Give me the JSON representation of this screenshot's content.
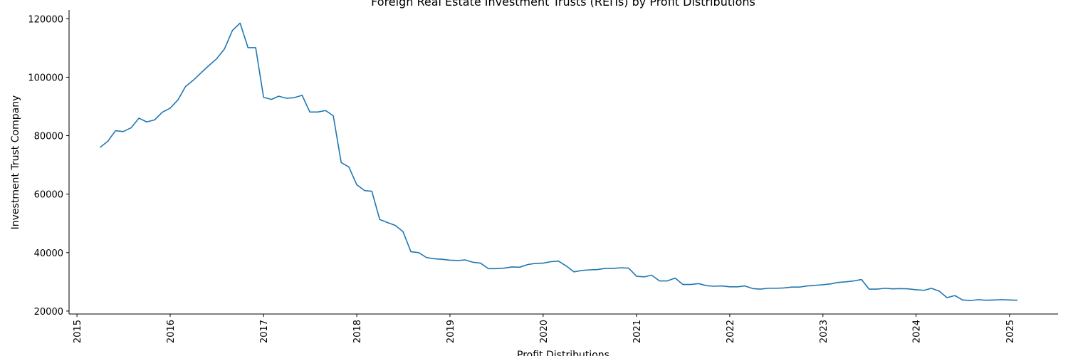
{
  "chart_data": {
    "type": "line",
    "title": "Foreign Real Estate Investment Trusts (REITs) by Profit Distributions",
    "xlabel": "Profit Distributions",
    "ylabel": "Investment Trust Company",
    "xlim": [
      "2014-12-01",
      "2025-07-10"
    ],
    "ylim": [
      19000,
      123000
    ],
    "x_ticks": [
      "2015",
      "2016",
      "2017",
      "2018",
      "2019",
      "2020",
      "2021",
      "2022",
      "2023",
      "2024",
      "2025"
    ],
    "y_ticks": [
      20000,
      40000,
      60000,
      80000,
      100000,
      120000
    ],
    "grid": false,
    "legend": "none",
    "color": "#1f77b4",
    "series": [
      {
        "x": [
          "2015-04",
          "2015-05",
          "2015-06",
          "2015-07",
          "2015-08",
          "2015-09",
          "2015-10",
          "2015-11",
          "2015-12",
          "2016-01",
          "2016-02",
          "2016-03",
          "2016-04",
          "2016-05",
          "2016-06",
          "2016-07",
          "2016-08",
          "2016-09",
          "2016-10",
          "2016-11",
          "2016-12",
          "2017-01",
          "2017-02",
          "2017-03",
          "2017-04",
          "2017-05",
          "2017-06",
          "2017-07",
          "2017-08",
          "2017-09",
          "2017-10",
          "2017-11",
          "2017-12",
          "2018-01",
          "2018-02",
          "2018-03",
          "2018-04",
          "2018-05",
          "2018-06",
          "2018-07",
          "2018-08",
          "2018-09",
          "2018-10",
          "2018-11",
          "2018-12",
          "2019-01",
          "2019-02",
          "2019-03",
          "2019-04",
          "2019-05",
          "2019-06",
          "2019-07",
          "2019-08",
          "2019-09",
          "2019-10",
          "2019-11",
          "2019-12",
          "2020-01",
          "2020-02",
          "2020-03",
          "2020-04",
          "2020-05",
          "2020-06",
          "2020-07",
          "2020-08",
          "2020-09",
          "2020-10",
          "2020-11",
          "2020-12",
          "2021-01",
          "2021-02",
          "2021-03",
          "2021-04",
          "2021-05",
          "2021-06",
          "2021-07",
          "2021-08",
          "2021-09",
          "2021-10",
          "2021-11",
          "2021-12",
          "2022-01",
          "2022-02",
          "2022-03",
          "2022-04",
          "2022-05",
          "2022-06",
          "2022-07",
          "2022-08",
          "2022-09",
          "2022-10",
          "2022-11",
          "2022-12",
          "2023-01",
          "2023-02",
          "2023-03",
          "2023-04",
          "2023-05",
          "2023-06",
          "2023-07",
          "2023-08",
          "2023-09",
          "2023-10",
          "2023-11",
          "2023-12",
          "2024-01",
          "2024-02",
          "2024-03",
          "2024-04",
          "2024-05",
          "2024-06",
          "2024-07",
          "2024-08",
          "2024-09",
          "2024-10",
          "2024-11",
          "2024-12",
          "2025-01",
          "2025-02"
        ],
        "values": [
          76000,
          78000,
          81700,
          81400,
          82700,
          86000,
          84700,
          85400,
          88000,
          89400,
          92300,
          96800,
          99000,
          101500,
          104000,
          106300,
          109700,
          116000,
          118500,
          110100,
          110100,
          93100,
          92400,
          93500,
          92800,
          93000,
          93800,
          88100,
          88100,
          88600,
          86800,
          70800,
          69300,
          63200,
          61200,
          61000,
          51300,
          50300,
          49300,
          47200,
          40300,
          40000,
          38300,
          37900,
          37700,
          37400,
          37300,
          37500,
          36700,
          36400,
          34500,
          34500,
          34700,
          35100,
          35000,
          35900,
          36300,
          36400,
          36900,
          37100,
          35400,
          33400,
          33900,
          34100,
          34200,
          34600,
          34600,
          34800,
          34700,
          31900,
          31700,
          32300,
          30300,
          30300,
          31300,
          29100,
          29100,
          29400,
          28700,
          28500,
          28600,
          28300,
          28300,
          28600,
          27700,
          27500,
          27800,
          27800,
          27900,
          28200,
          28200,
          28600,
          28800,
          29000,
          29300,
          29800,
          30000,
          30300,
          30800,
          27500,
          27500,
          27800,
          27600,
          27700,
          27600,
          27300,
          27100,
          27800,
          26800,
          24600,
          25300,
          23800,
          23600,
          23900,
          23700,
          23800,
          23900,
          23800,
          23700
        ]
      }
    ]
  }
}
